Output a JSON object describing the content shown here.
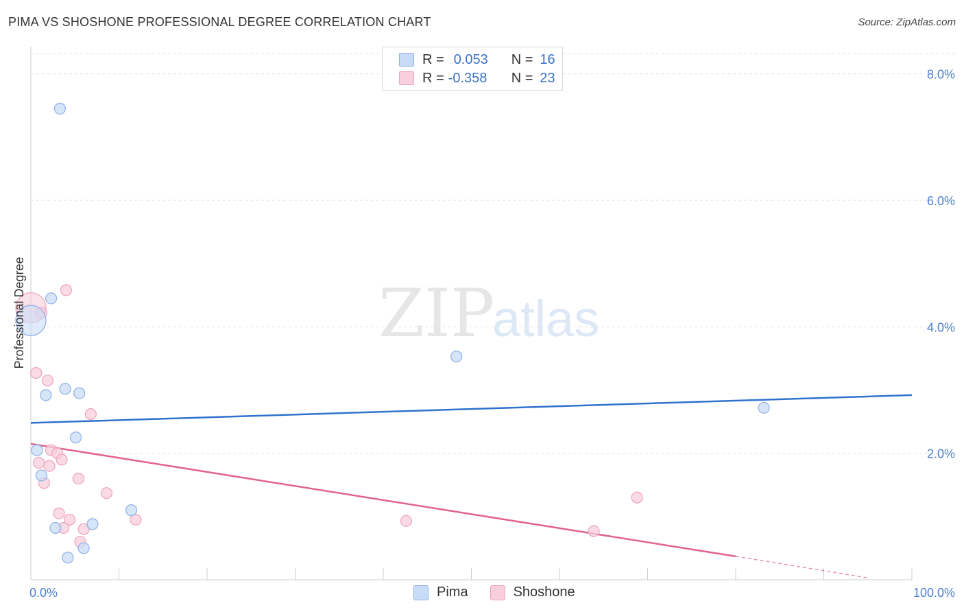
{
  "header": {
    "title": "PIMA VS SHOSHONE PROFESSIONAL DEGREE CORRELATION CHART",
    "source": "Source: ZipAtlas.com"
  },
  "watermark": {
    "zip": "ZIP",
    "atlas": "atlas"
  },
  "colors": {
    "pima_fill": "#c9dcf7",
    "pima_stroke": "#8db0e6",
    "pima_line": "#2f72cc",
    "shoshone_fill": "#f8cfdc",
    "shoshone_stroke": "#eea3bc",
    "shoshone_line": "#e0628f",
    "tick_text": "#4a7fd0",
    "grid": "#dedede"
  },
  "legend": {
    "pima": {
      "r_label": "R =",
      "r_value": "0.053",
      "n_label": "N =",
      "n_value": "16"
    },
    "shoshone": {
      "r_label": "R =",
      "r_value": "-0.358",
      "n_label": "N =",
      "n_value": "23"
    }
  },
  "bottom_legend": {
    "pima": "Pima",
    "shoshone": "Shoshone"
  },
  "chart_data": {
    "type": "scatter",
    "title": "PIMA VS SHOSHONE PROFESSIONAL DEGREE CORRELATION CHART",
    "xlabel": "",
    "ylabel": "Professional Degree",
    "xlim": [
      0,
      100
    ],
    "ylim": [
      0,
      8.3
    ],
    "x_tick_labels": [
      "0.0%",
      "100.0%"
    ],
    "y_ticks": [
      2.0,
      4.0,
      6.0,
      8.0
    ],
    "y_tick_labels": [
      "2.0%",
      "4.0%",
      "6.0%",
      "8.0%"
    ],
    "grid": true,
    "series": [
      {
        "name": "Pima",
        "points": [
          {
            "x": 0.0,
            "y": 4.1,
            "big": true
          },
          {
            "x": 3.3,
            "y": 7.45
          },
          {
            "x": 2.3,
            "y": 4.45
          },
          {
            "x": 3.9,
            "y": 3.02
          },
          {
            "x": 5.5,
            "y": 2.95
          },
          {
            "x": 1.7,
            "y": 2.92
          },
          {
            "x": 5.1,
            "y": 2.25
          },
          {
            "x": 0.7,
            "y": 2.05
          },
          {
            "x": 1.2,
            "y": 1.65
          },
          {
            "x": 11.4,
            "y": 1.1
          },
          {
            "x": 7.0,
            "y": 0.88
          },
          {
            "x": 2.8,
            "y": 0.82
          },
          {
            "x": 6.0,
            "y": 0.5
          },
          {
            "x": 4.2,
            "y": 0.35
          },
          {
            "x": 48.3,
            "y": 3.53
          },
          {
            "x": 83.2,
            "y": 2.72
          }
        ],
        "trend": {
          "x0": 0,
          "y0": 2.48,
          "x1": 100,
          "y1": 2.92
        }
      },
      {
        "name": "Shoshone",
        "points": [
          {
            "x": 0.0,
            "y": 4.3,
            "big": true
          },
          {
            "x": 4.0,
            "y": 4.58
          },
          {
            "x": 1.2,
            "y": 4.22
          },
          {
            "x": 0.6,
            "y": 3.27
          },
          {
            "x": 1.9,
            "y": 3.15
          },
          {
            "x": 6.8,
            "y": 2.62
          },
          {
            "x": 2.3,
            "y": 2.05
          },
          {
            "x": 3.0,
            "y": 2.0
          },
          {
            "x": 3.5,
            "y": 1.9
          },
          {
            "x": 0.9,
            "y": 1.85
          },
          {
            "x": 2.1,
            "y": 1.8
          },
          {
            "x": 5.4,
            "y": 1.6
          },
          {
            "x": 1.5,
            "y": 1.53
          },
          {
            "x": 8.6,
            "y": 1.37
          },
          {
            "x": 3.2,
            "y": 1.05
          },
          {
            "x": 4.4,
            "y": 0.95
          },
          {
            "x": 11.9,
            "y": 0.95
          },
          {
            "x": 3.7,
            "y": 0.82
          },
          {
            "x": 6.0,
            "y": 0.8
          },
          {
            "x": 5.6,
            "y": 0.6
          },
          {
            "x": 42.6,
            "y": 0.93
          },
          {
            "x": 68.8,
            "y": 1.3
          },
          {
            "x": 63.9,
            "y": 0.77
          }
        ],
        "trend": {
          "x0": 0,
          "y0": 2.15,
          "x1": 80,
          "y1": 0.37
        },
        "trend_dashed": {
          "x0": 80,
          "y0": 0.37,
          "x1": 95,
          "y1": 0.03
        }
      }
    ]
  }
}
